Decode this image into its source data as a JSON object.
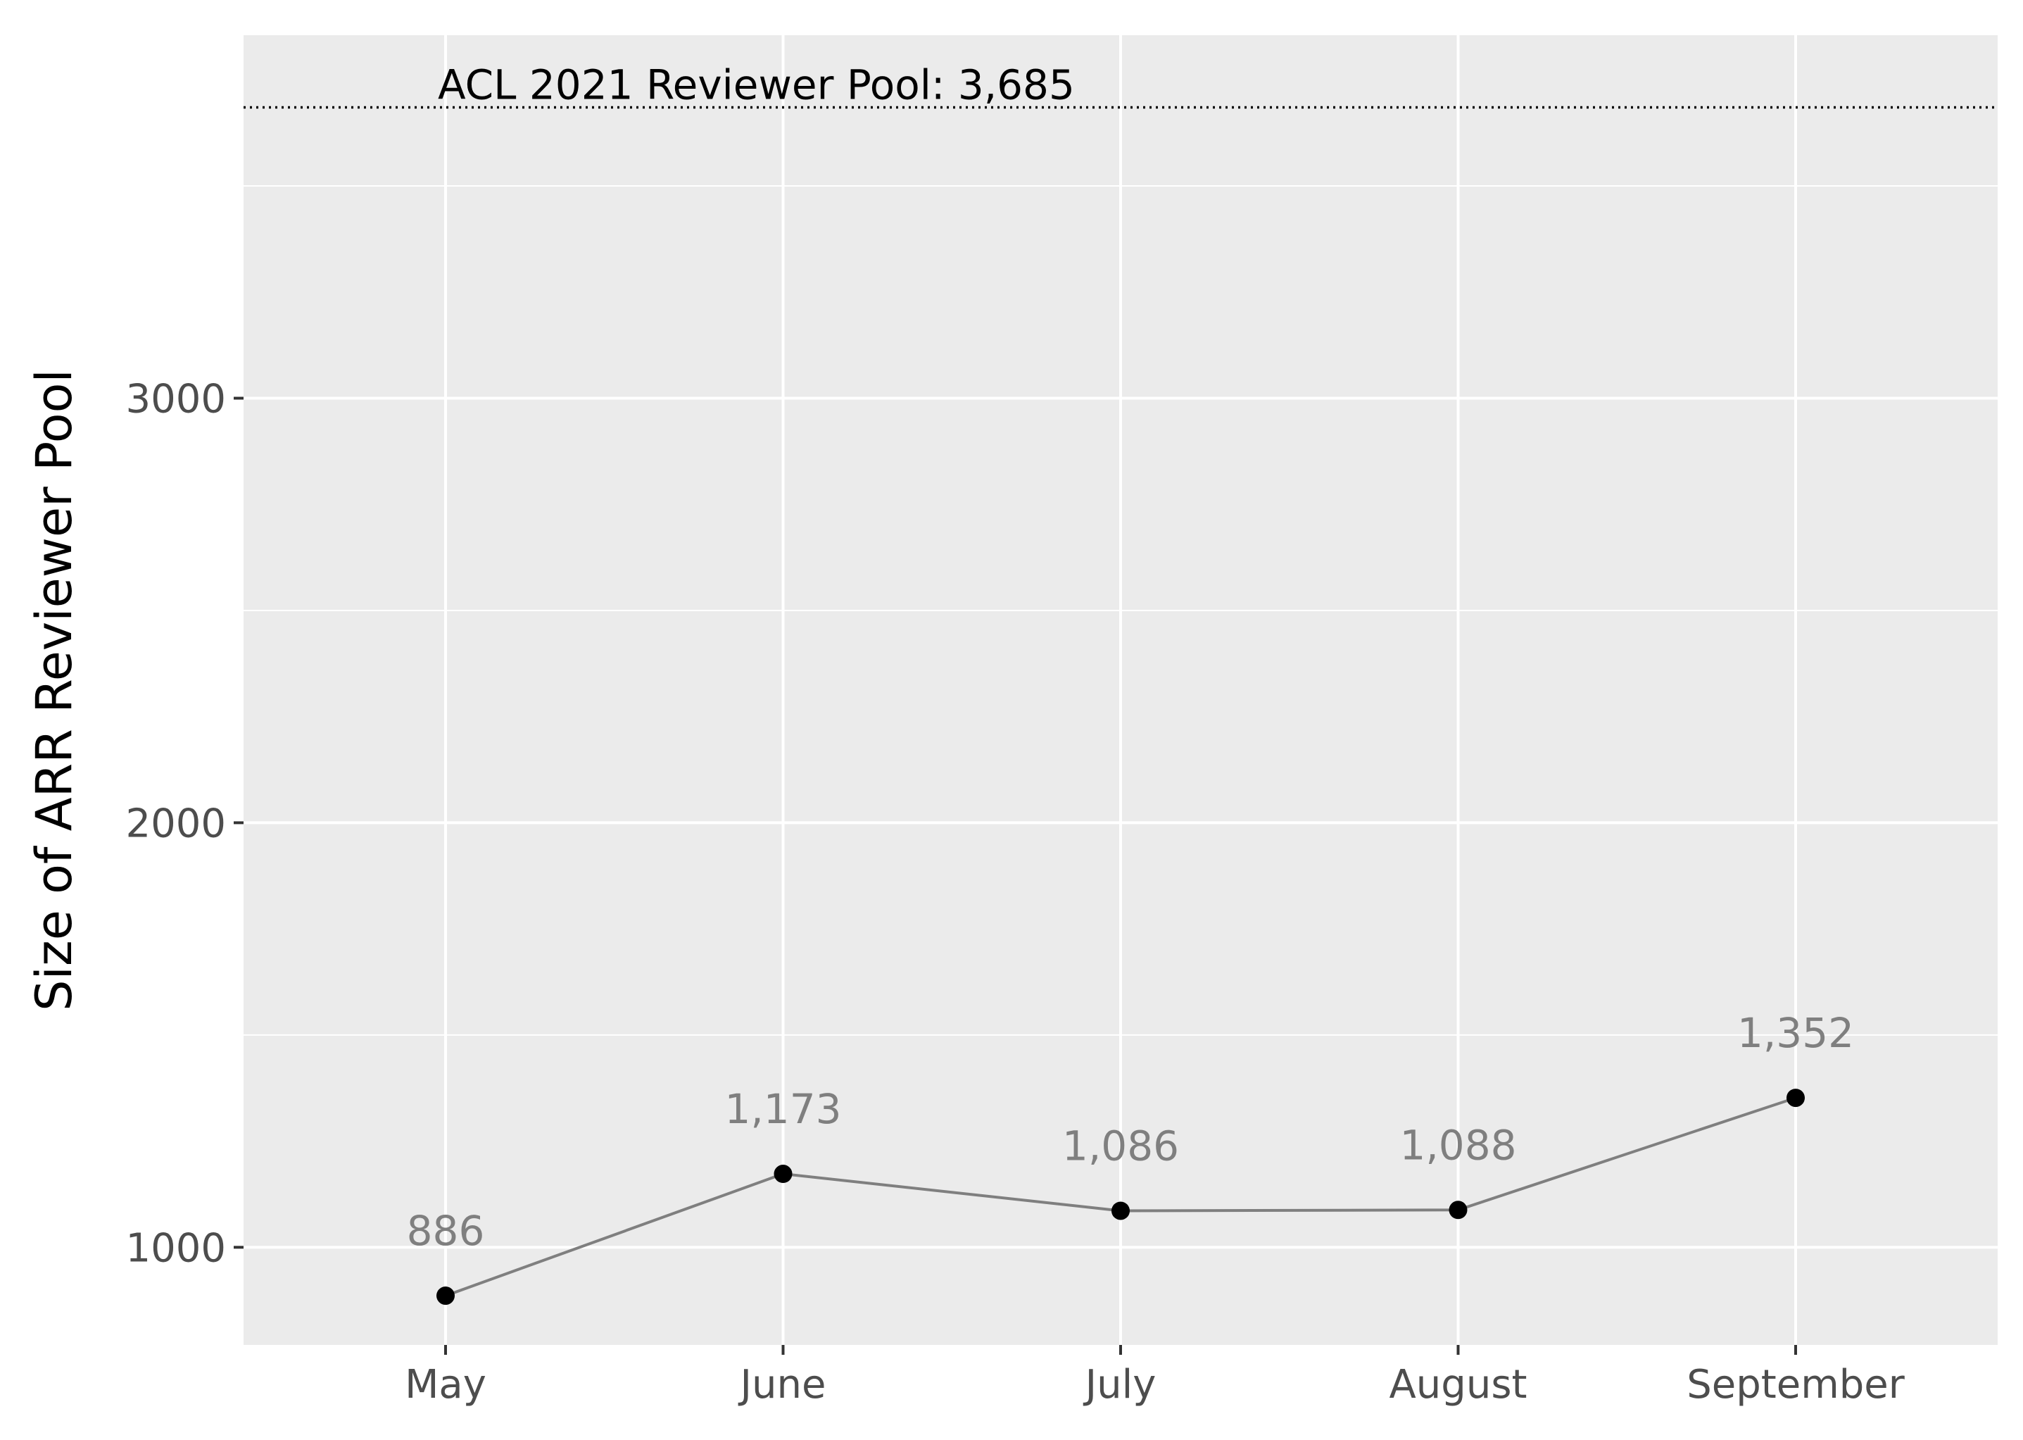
{
  "chart_data": {
    "type": "line",
    "title": "",
    "xlabel": "",
    "ylabel": "Size of ARR Reviewer Pool",
    "categories": [
      "May",
      "June",
      "July",
      "August",
      "September"
    ],
    "values": [
      886,
      1173,
      1086,
      1088,
      1352
    ],
    "data_labels": [
      "886",
      "1,173",
      "1,086",
      "1,088",
      "1,352"
    ],
    "ylim": [
      770,
      3855
    ],
    "yticks": [
      1000,
      2000,
      3000
    ],
    "ytick_labels": [
      "1000",
      "2000",
      "3000"
    ],
    "grid": true,
    "legend": "none",
    "reference_line": {
      "value": 3685,
      "label": "ACL 2021 Reviewer Pool: 3,685",
      "style": "dotted"
    },
    "colors": {
      "panel_background": "#ebebeb",
      "grid": "#ffffff",
      "line": "#7f7f7f",
      "points": "#000000",
      "data_label": "#7f7f7f",
      "tick_label": "#4d4d4d",
      "axis_title": "#000000",
      "reference_line": "#000000"
    }
  }
}
